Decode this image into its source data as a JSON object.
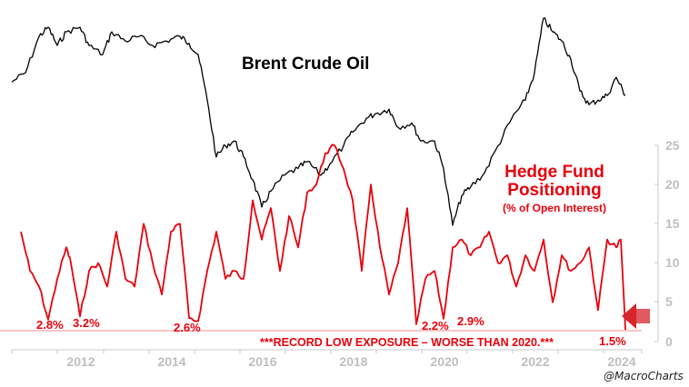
{
  "chart_data": [
    {
      "type": "line",
      "title": "Brent Crude Oil",
      "xlabel": "",
      "ylabel": "",
      "x_range": [
        2010.5,
        2024.0
      ],
      "series": [
        {
          "name": "Brent Crude Oil",
          "color": "#000000",
          "axis": "left (unlabeled)",
          "x": [
            2010.5,
            2010.8,
            2011.1,
            2011.3,
            2011.5,
            2011.7,
            2012.0,
            2012.2,
            2012.5,
            2012.7,
            2013.0,
            2013.3,
            2013.6,
            2013.9,
            2014.2,
            2014.4,
            2014.6,
            2014.8,
            2015.0,
            2015.2,
            2015.4,
            2015.6,
            2015.8,
            2016.0,
            2016.2,
            2016.5,
            2016.8,
            2017.0,
            2017.3,
            2017.5,
            2017.8,
            2018.0,
            2018.3,
            2018.5,
            2018.8,
            2019.0,
            2019.3,
            2019.5,
            2019.8,
            2020.0,
            2020.2,
            2020.4,
            2020.6,
            2020.9,
            2021.2,
            2021.5,
            2021.8,
            2022.0,
            2022.2,
            2022.4,
            2022.6,
            2022.8,
            2023.0,
            2023.2,
            2023.4,
            2023.6,
            2023.8,
            2024.0
          ],
          "y": [
            88,
            92,
            108,
            112,
            104,
            110,
            112,
            104,
            100,
            110,
            106,
            108,
            104,
            106,
            108,
            105,
            100,
            80,
            55,
            60,
            62,
            55,
            45,
            33,
            40,
            47,
            50,
            53,
            47,
            52,
            60,
            66,
            72,
            74,
            76,
            68,
            70,
            62,
            62,
            50,
            25,
            38,
            42,
            48,
            60,
            72,
            80,
            92,
            116,
            110,
            106,
            98,
            84,
            78,
            80,
            82,
            90,
            82
          ]
        },
        {
          "name": "Hedge Fund Positioning (% of Open Interest)",
          "color": "#e8000b",
          "axis": "right",
          "x": [
            2010.7,
            2010.9,
            2011.1,
            2011.3,
            2011.5,
            2011.7,
            2011.8,
            2012.0,
            2012.2,
            2012.4,
            2012.6,
            2012.8,
            2013.0,
            2013.2,
            2013.4,
            2013.6,
            2013.8,
            2014.0,
            2014.2,
            2014.4,
            2014.6,
            2014.8,
            2015.0,
            2015.2,
            2015.4,
            2015.6,
            2015.8,
            2016.0,
            2016.2,
            2016.4,
            2016.6,
            2016.8,
            2017.0,
            2017.2,
            2017.4,
            2017.6,
            2017.8,
            2018.0,
            2018.2,
            2018.4,
            2018.6,
            2018.8,
            2019.0,
            2019.2,
            2019.4,
            2019.6,
            2019.8,
            2020.0,
            2020.2,
            2020.4,
            2020.6,
            2020.8,
            2021.0,
            2021.2,
            2021.4,
            2021.6,
            2021.8,
            2022.0,
            2022.2,
            2022.4,
            2022.6,
            2022.8,
            2023.0,
            2023.2,
            2023.4,
            2023.6,
            2023.8,
            2023.9,
            2024.0
          ],
          "y": [
            14,
            9,
            7,
            2.8,
            8,
            12,
            10,
            3.2,
            9,
            10,
            7,
            14,
            8,
            7,
            15,
            10,
            6,
            14,
            15,
            3,
            2.6,
            9,
            14,
            8,
            9,
            8,
            18,
            13,
            17,
            9,
            16,
            12,
            19,
            20,
            24,
            25,
            22,
            18,
            9,
            20,
            12,
            6,
            10,
            17,
            2.2,
            8,
            9,
            2.9,
            12,
            13,
            11,
            12,
            14,
            10,
            11,
            7,
            11,
            9,
            13,
            5,
            11,
            9,
            10,
            12,
            4,
            13,
            12,
            13,
            1.5
          ],
          "annotations": [
            {
              "x": 2011.3,
              "y": 2.8,
              "label": "2.8%"
            },
            {
              "x": 2012.0,
              "y": 3.2,
              "label": "3.2%"
            },
            {
              "x": 2014.6,
              "y": 2.6,
              "label": "2.6%"
            },
            {
              "x": 2019.4,
              "y": 2.2,
              "label": "2.2%"
            },
            {
              "x": 2020.0,
              "y": 2.9,
              "label": "2.9%"
            },
            {
              "x": 2024.0,
              "y": 1.5,
              "label": "1.5%"
            }
          ]
        }
      ],
      "right_axis": {
        "ticks": [
          0,
          5,
          10,
          15,
          20,
          25
        ],
        "ylim": [
          0,
          25
        ]
      },
      "x_ticks": [
        "2012",
        "2014",
        "2016",
        "2018",
        "2020",
        "2024"
      ],
      "x_tick_labels_all": [
        "2012",
        "2014",
        "2016",
        "2018",
        "2020",
        "2022",
        "2024"
      ],
      "reference_line": {
        "y": 1.5,
        "color": "#f0a0a0"
      },
      "legend_position": "inline text labels",
      "grid": false
    }
  ],
  "labels": {
    "oil_title": "Brent Crude Oil",
    "hf_title_line1": "Hedge Fund",
    "hf_title_line2": "Positioning",
    "hf_subtitle": "(% of Open Interest)",
    "record_note": "***RECORD LOW EXPOSURE – WORSE THAN 2020.***",
    "credit": "@MacroCharts",
    "ann": [
      "2.8%",
      "3.2%",
      "2.6%",
      "2.2%",
      "2.9%",
      "1.5%"
    ],
    "y_ticks": [
      "25",
      "20",
      "15",
      "10",
      "5",
      "0"
    ],
    "x_ticks": [
      "2012",
      "2014",
      "2016",
      "2018",
      "2020",
      "2022",
      "2024"
    ]
  },
  "colors": {
    "oil": "#000000",
    "hf": "#e8000b",
    "axis": "#bfbfbf",
    "arrow": "#d9232d"
  }
}
